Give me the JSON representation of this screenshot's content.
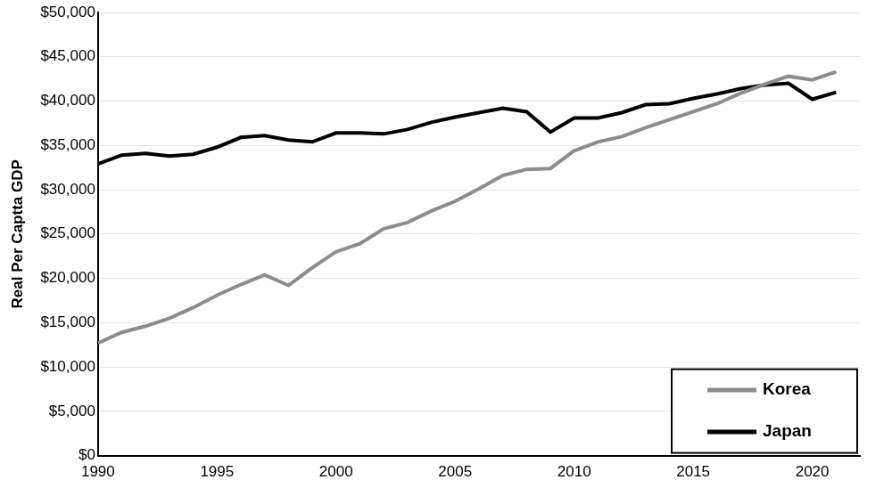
{
  "chart_data": {
    "type": "line",
    "y_label": "Real Per Captta GDP",
    "x": [
      1990,
      1991,
      1992,
      1993,
      1994,
      1995,
      1996,
      1997,
      1998,
      1999,
      2000,
      2001,
      2002,
      2003,
      2004,
      2005,
      2006,
      2007,
      2008,
      2009,
      2010,
      2011,
      2012,
      2013,
      2014,
      2015,
      2016,
      2017,
      2018,
      2019,
      2020,
      2021
    ],
    "series": [
      {
        "name": "Korea",
        "color": "#8c8c8c",
        "values": [
          12700,
          13900,
          14600,
          15500,
          16700,
          18100,
          19300,
          20400,
          19200,
          21200,
          23000,
          23900,
          25600,
          26300,
          27600,
          28700,
          30100,
          31600,
          32300,
          32400,
          34400,
          35400,
          36000,
          37000,
          37900,
          38800,
          39700,
          40900,
          41900,
          42800,
          42400,
          43300
        ]
      },
      {
        "name": "Japan",
        "color": "#000000",
        "values": [
          32900,
          33900,
          34100,
          33800,
          34000,
          34800,
          35900,
          36100,
          35600,
          35400,
          36400,
          36400,
          36300,
          36800,
          37600,
          38200,
          38700,
          39200,
          38800,
          36500,
          38100,
          38100,
          38700,
          39600,
          39700,
          40300,
          40800,
          41400,
          41800,
          42000,
          40200,
          41000
        ]
      }
    ],
    "xlim": [
      1990,
      2022
    ],
    "xticks": [
      1990,
      1995,
      2000,
      2005,
      2010,
      2015,
      2020
    ],
    "ylim": [
      0,
      50000
    ],
    "yticks": [
      {
        "value": 0,
        "label": "$0"
      },
      {
        "value": 5000,
        "label": "$5,000"
      },
      {
        "value": 10000,
        "label": "$10,000"
      },
      {
        "value": 15000,
        "label": "$15,000"
      },
      {
        "value": 20000,
        "label": "$20,000"
      },
      {
        "value": 25000,
        "label": "$25,000"
      },
      {
        "value": 30000,
        "label": "$30,000"
      },
      {
        "value": 35000,
        "label": "$35,000"
      },
      {
        "value": 40000,
        "label": "$40,000"
      },
      {
        "value": 45000,
        "label": "$45,000"
      },
      {
        "value": 50000,
        "label": "$50,000"
      }
    ],
    "grid": true,
    "legend": "lower right"
  }
}
